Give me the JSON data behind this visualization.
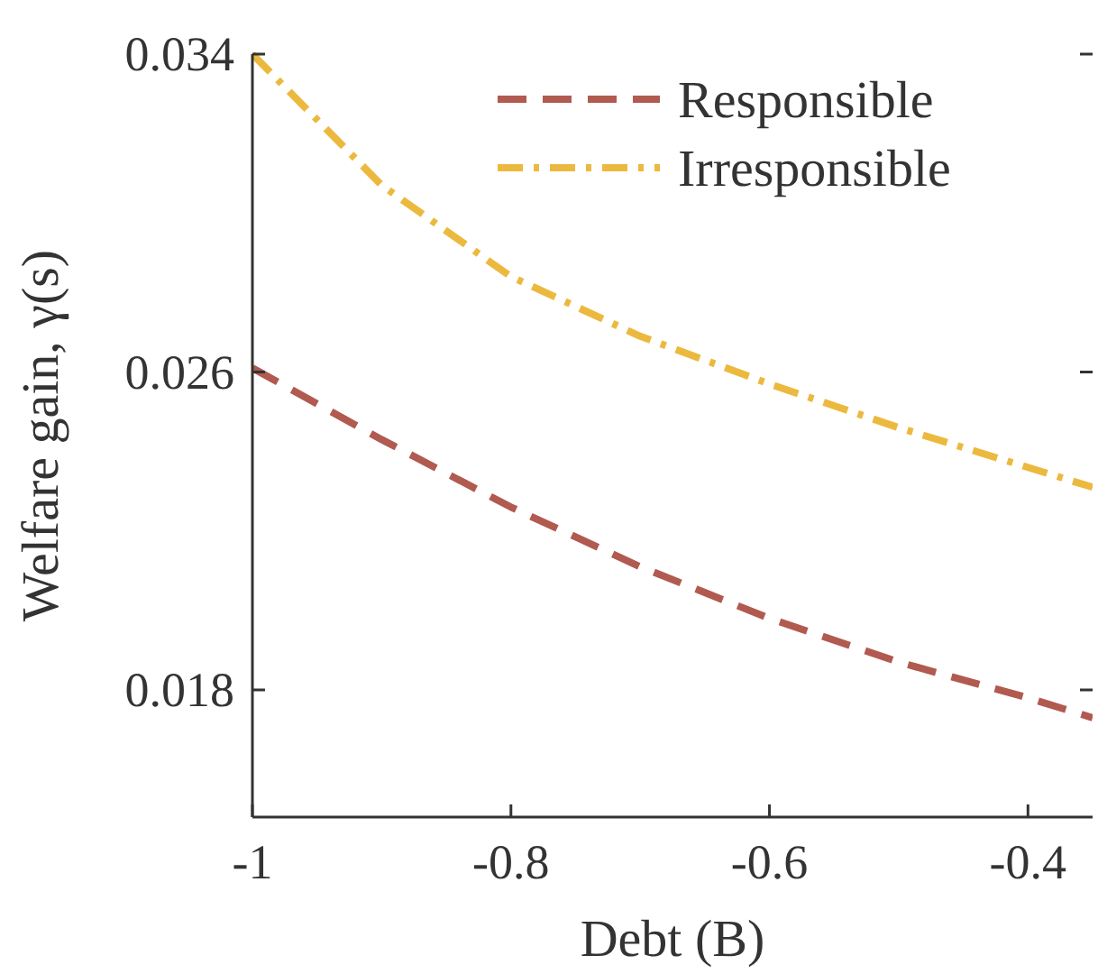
{
  "chart_data": {
    "type": "line",
    "xlabel": "Debt (B)",
    "ylabel": "Welfare gain, γ(s)",
    "x": [
      -1,
      -0.9,
      -0.8,
      -0.7,
      -0.6,
      -0.5,
      -0.4,
      -0.35
    ],
    "series": [
      {
        "name": "Responsible",
        "color": "#b15a50",
        "line_style": "dashed",
        "values": [
          0.0261,
          0.0243,
          0.0226,
          0.0211,
          0.0198,
          0.0187,
          0.0178,
          0.0173
        ]
      },
      {
        "name": "Irresponsible",
        "color": "#ecb93f",
        "line_style": "dashdot",
        "values": [
          0.034,
          0.0307,
          0.0284,
          0.0269,
          0.0257,
          0.0246,
          0.0236,
          0.0231
        ]
      }
    ],
    "xlim": [
      -1,
      -0.35
    ],
    "xticks": [
      -1,
      -0.8,
      -0.6,
      -0.4
    ],
    "ylim": [
      0.0148,
      0.034
    ],
    "yticks": [
      0.018,
      0.026,
      0.034
    ],
    "legend": "top right",
    "grid": false,
    "marker": "none"
  }
}
